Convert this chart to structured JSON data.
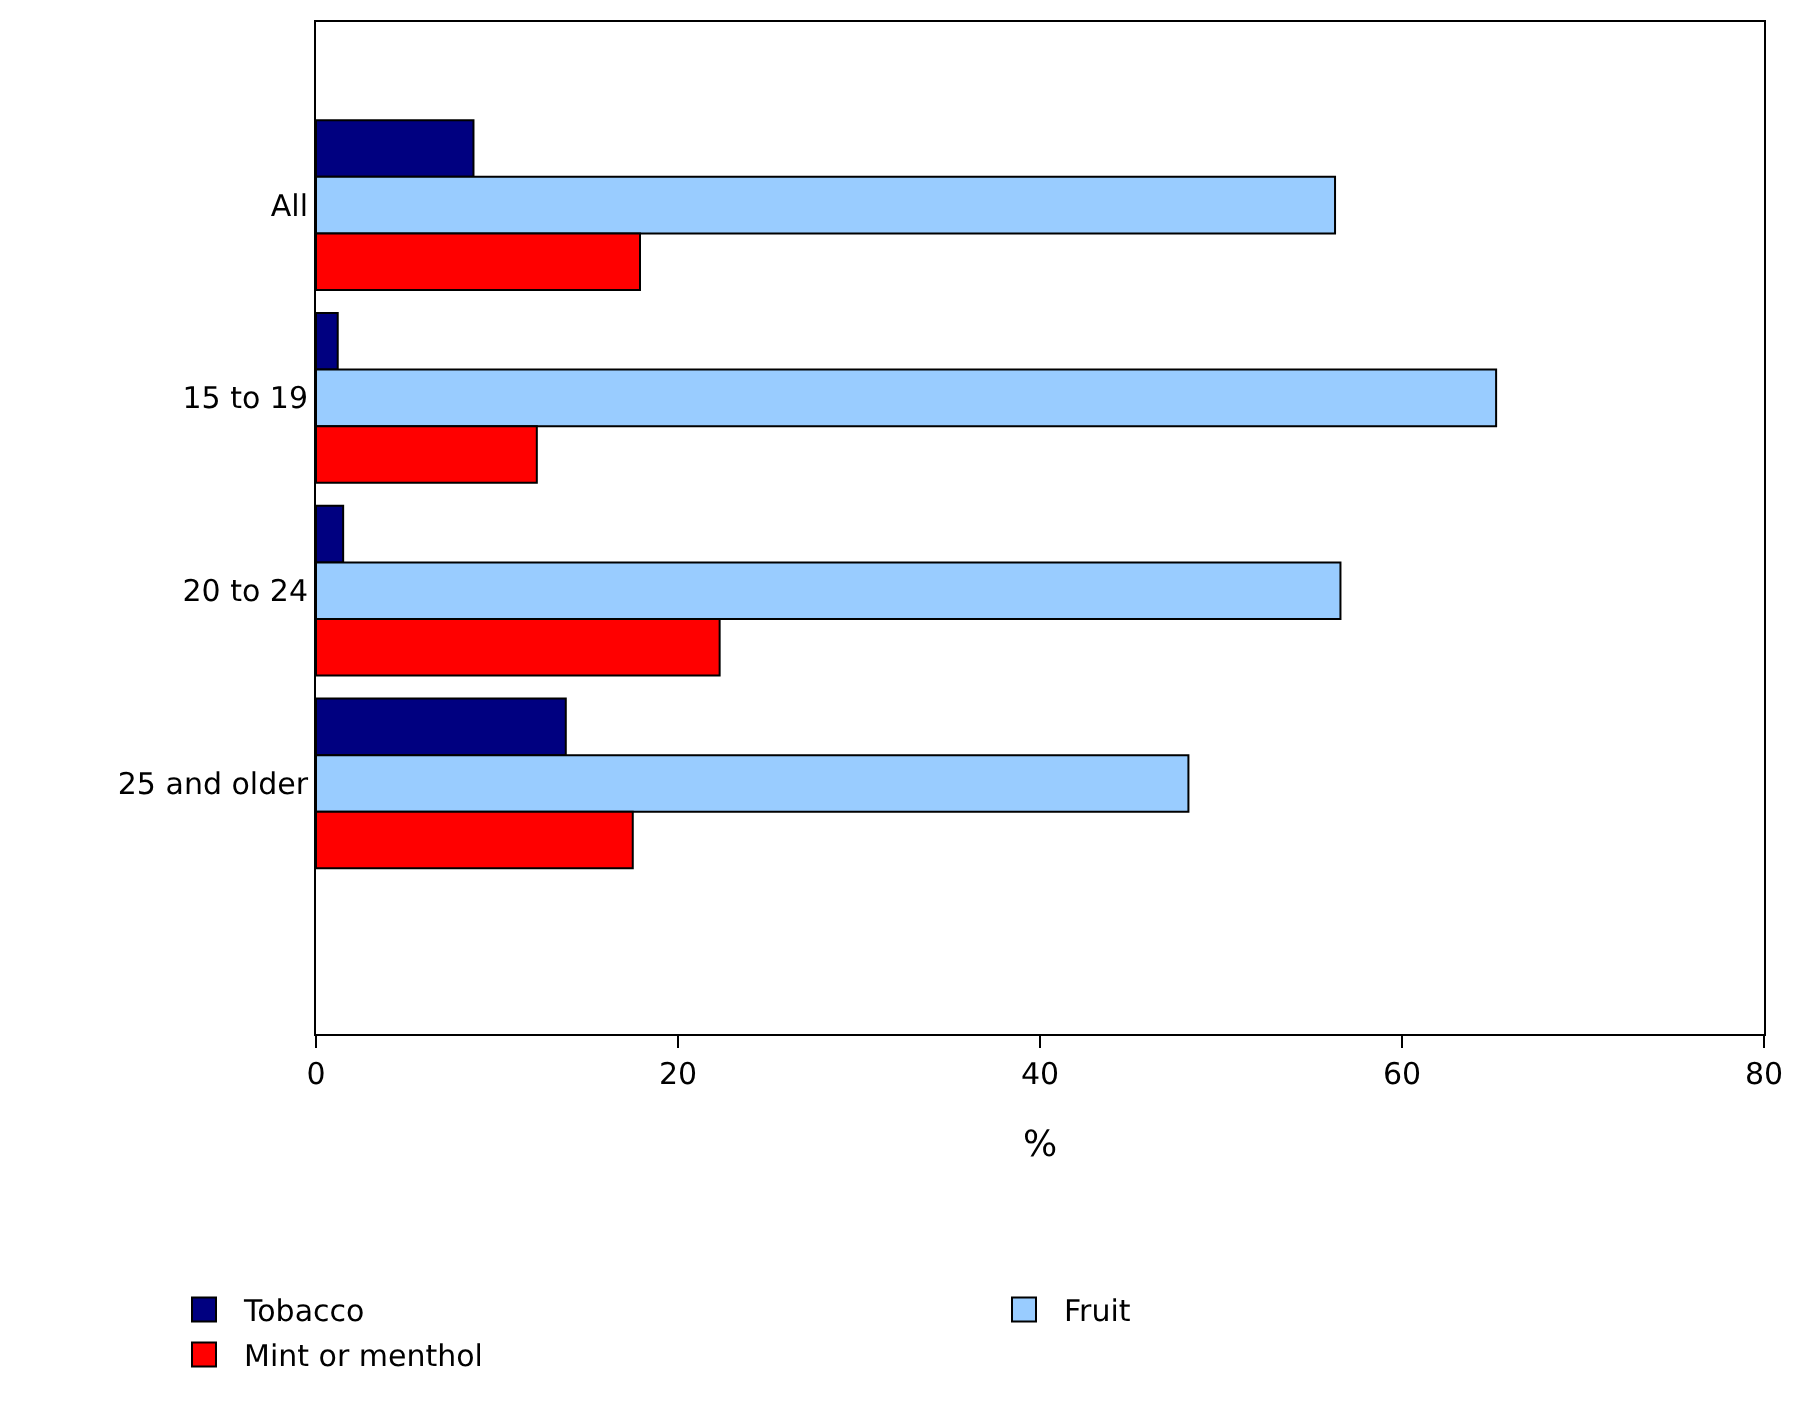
{
  "chart_data": {
    "type": "bar",
    "orientation": "horizontal",
    "xlabel": "%",
    "categories": [
      "All",
      "15 to 19",
      "20 to 24",
      "25 and older"
    ],
    "series": [
      {
        "name": "Tobacco",
        "color": "#000080",
        "values": [
          8.7,
          1.2,
          1.5,
          13.8
        ]
      },
      {
        "name": "Fruit",
        "color": "#99ccff",
        "values": [
          56.3,
          65.2,
          56.6,
          48.2
        ]
      },
      {
        "name": "Mint or menthol",
        "color": "#ff0000",
        "values": [
          17.9,
          12.2,
          22.3,
          17.5
        ]
      }
    ],
    "xlim": [
      0,
      80
    ],
    "xticks": [
      0,
      20,
      40,
      60,
      80
    ],
    "legend": "bottom"
  }
}
